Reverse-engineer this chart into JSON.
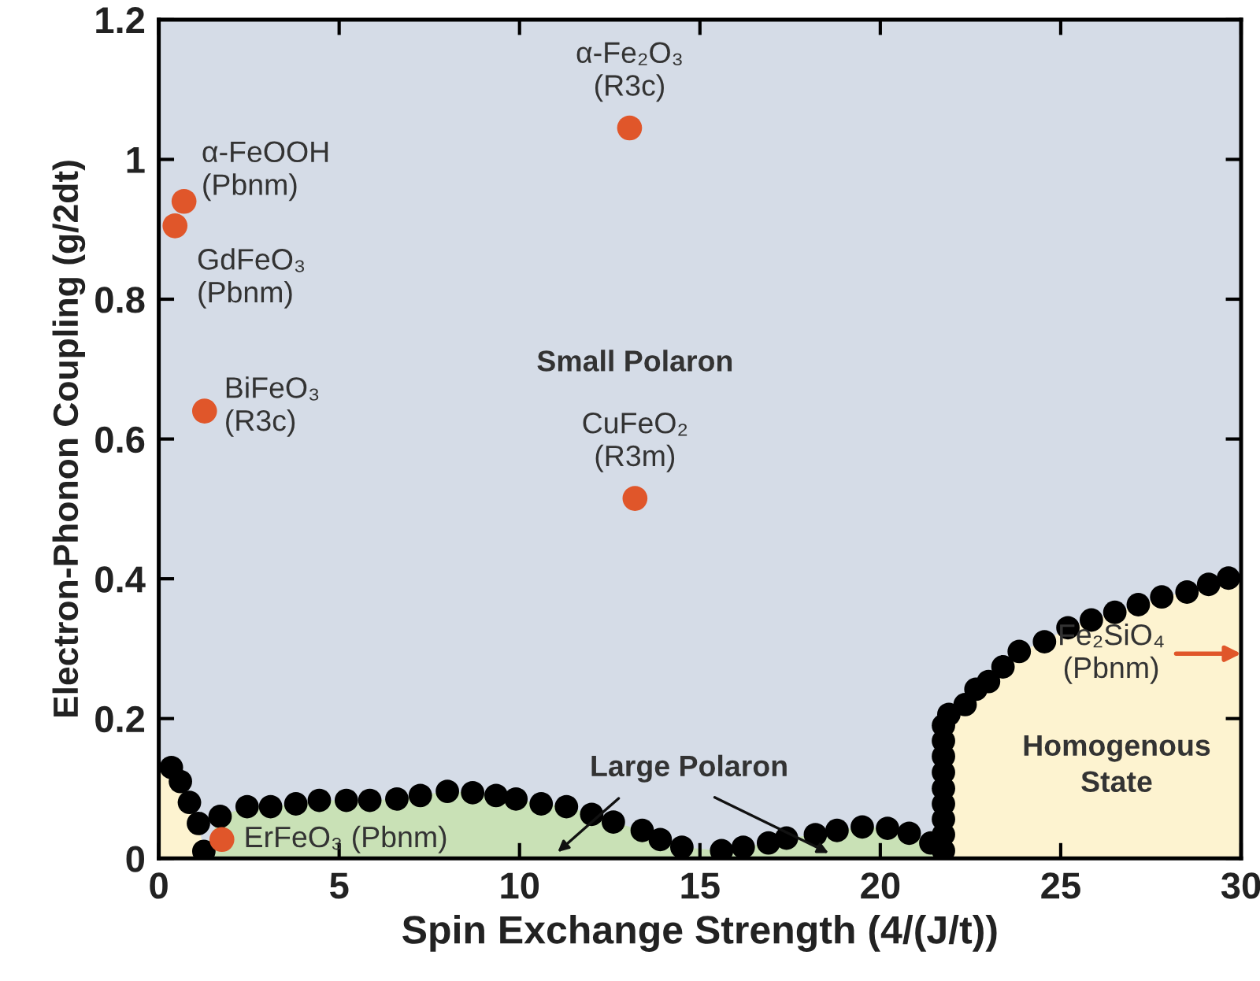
{
  "chart_data": {
    "type": "scatter",
    "xlabel": "Spin Exchange Strength (4/(J/t))",
    "ylabel": "Electron-Phonon Coupling (g/2dt)",
    "xlim": [
      0,
      30
    ],
    "xticks": [
      0,
      5,
      10,
      15,
      20,
      25,
      30
    ],
    "ylim": [
      0,
      1.2
    ],
    "yticks": [
      0,
      0.2,
      0.4,
      0.6,
      0.8,
      1,
      1.2
    ],
    "grid": false,
    "bands": [
      {
        "axis": "y",
        "from": 0,
        "to": 1.2,
        "color": "#d5dce7"
      }
    ],
    "series": [
      {
        "type": "area",
        "color": "#fdf3d0",
        "x": [
          0,
          0.35,
          0.6,
          0.85,
          1.1,
          1.25
        ],
        "values": [
          0.13,
          0.13,
          0.11,
          0.08,
          0.05,
          0.01
        ]
      },
      {
        "type": "area",
        "color": "#c9e1b6",
        "x": [
          1.25,
          1.7,
          2.45,
          3.1,
          3.8,
          4.45,
          5.2,
          5.85,
          6.6,
          7.25,
          8.0,
          8.7,
          9.35,
          9.9,
          10.6,
          11.3,
          12.0,
          12.6,
          13.4,
          13.9,
          14.5,
          15.6,
          16.2,
          16.9,
          17.4,
          18.2,
          18.8,
          19.5,
          20.2,
          20.8,
          21.4,
          21.75
        ],
        "values": [
          0.01,
          0.06,
          0.074,
          0.074,
          0.078,
          0.083,
          0.083,
          0.083,
          0.085,
          0.09,
          0.096,
          0.094,
          0.09,
          0.085,
          0.078,
          0.074,
          0.063,
          0.052,
          0.04,
          0.027,
          0.016,
          0.011,
          0.016,
          0.022,
          0.029,
          0.034,
          0.04,
          0.045,
          0.043,
          0.036,
          0.022,
          0.011
        ]
      },
      {
        "type": "area",
        "color": "#fdf3d0",
        "x": [
          21.75,
          21.75,
          21.9,
          22.35,
          22.65,
          23.0,
          23.4,
          23.85,
          24.55,
          25.2,
          25.85,
          26.5,
          27.15,
          27.8,
          28.5,
          29.1,
          29.65,
          30
        ],
        "values": [
          0,
          0.213,
          0.206,
          0.22,
          0.242,
          0.253,
          0.274,
          0.296,
          0.31,
          0.33,
          0.341,
          0.352,
          0.363,
          0.374,
          0.381,
          0.392,
          0.401,
          0.405
        ]
      },
      {
        "color": "#000000",
        "x": [
          0.35,
          0.6,
          0.85,
          1.1,
          1.25,
          1.7,
          2.45,
          3.1,
          3.8,
          4.45,
          5.2,
          5.85,
          6.6,
          7.25,
          8.0,
          8.7,
          9.35,
          9.9,
          10.6,
          11.3,
          12.0,
          12.6,
          13.4,
          13.9,
          14.5,
          15.6,
          16.2,
          16.9,
          17.4,
          18.2,
          18.8,
          19.5,
          20.2,
          20.8,
          21.4,
          21.75,
          21.75,
          21.75,
          21.75,
          21.75,
          21.75,
          21.75,
          21.75,
          21.75,
          21.9,
          22.35,
          22.65,
          23.0,
          23.4,
          23.85,
          24.55,
          25.2,
          25.85,
          26.5,
          27.15,
          27.8,
          28.5,
          29.1,
          29.65
        ],
        "values": [
          0.13,
          0.11,
          0.08,
          0.05,
          0.01,
          0.06,
          0.074,
          0.074,
          0.078,
          0.083,
          0.083,
          0.083,
          0.085,
          0.09,
          0.096,
          0.094,
          0.09,
          0.085,
          0.078,
          0.074,
          0.063,
          0.052,
          0.04,
          0.027,
          0.016,
          0.011,
          0.016,
          0.022,
          0.029,
          0.034,
          0.04,
          0.045,
          0.043,
          0.036,
          0.022,
          0.011,
          0.034,
          0.056,
          0.078,
          0.1,
          0.123,
          0.146,
          0.168,
          0.19,
          0.206,
          0.22,
          0.242,
          0.253,
          0.274,
          0.296,
          0.31,
          0.33,
          0.341,
          0.352,
          0.363,
          0.374,
          0.381,
          0.392,
          0.401
        ]
      },
      {
        "color": "#e0562a",
        "x": [
          13.05,
          0.7,
          0.45,
          1.27,
          13.2,
          1.75
        ],
        "values": [
          1.045,
          0.94,
          0.905,
          0.64,
          0.515,
          0.027
        ]
      }
    ],
    "annotations": [
      {
        "text": "α-Fe₂O₃\n(R3c)",
        "x": 13.05,
        "y": 1.045
      },
      {
        "text": "α-FeOOH\n(Pbnm)",
        "x": 0.7,
        "y": 0.94
      },
      {
        "text": "GdFeO₃\n(Pbnm)",
        "x": 0.45,
        "y": 0.905
      },
      {
        "text": "BiFeO₃\n(R3c)",
        "x": 1.27,
        "y": 0.64
      },
      {
        "text": "CuFeO₂\n(R3m)",
        "x": 13.2,
        "y": 0.515
      },
      {
        "text": "ErFeO₃ (Pbnm)",
        "x": 1.75,
        "y": 0.027
      },
      "Fe₂SiO₄\n(Pbnm)",
      "Large Polaron",
      "Small Polaron",
      "Homogenous\nState"
    ]
  }
}
